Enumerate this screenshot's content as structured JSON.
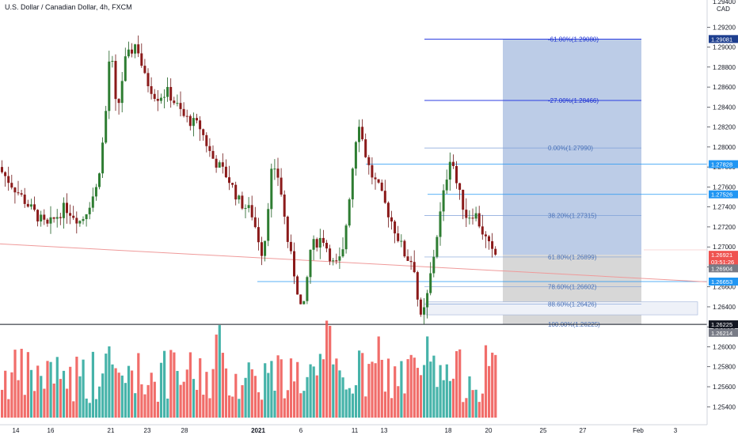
{
  "header": {
    "title": "U.S. Dollar / Canadian Dollar, 4h, FXCM"
  },
  "chart_data": {
    "type": "candlestick",
    "title": "U.S. Dollar / Canadian Dollar, 4h, FXCM",
    "price_axis": {
      "currency": "CAD",
      "ylim": [
        1.2522,
        1.2944
      ],
      "ticks": [
        "1.25400",
        "1.25600",
        "1.25800",
        "1.26000",
        "1.26200",
        "1.26400",
        "1.26600",
        "1.26800",
        "1.27000",
        "1.27200",
        "1.27400",
        "1.27600",
        "1.27800",
        "1.28000",
        "1.28200",
        "1.28400",
        "1.28600",
        "1.28800",
        "1.29000",
        "1.29200"
      ],
      "top_partial_tick": "1.29400"
    },
    "x_axis": {
      "labels": [
        "14",
        "16",
        "21",
        "23",
        "28",
        "2021",
        "6",
        "11",
        "13",
        "18",
        "20",
        "25",
        "27",
        "Feb",
        "3"
      ],
      "bold": [
        "2021"
      ]
    },
    "price_tags": [
      {
        "text": "1.29081",
        "price": 1.29081,
        "color": "#1e3f8f"
      },
      {
        "text": "1.27828",
        "price": 1.27828,
        "color": "#2196f3"
      },
      {
        "text": "1.27526",
        "price": 1.27526,
        "color": "#2196f3"
      },
      {
        "text": "1.26921",
        "price": 1.26921,
        "color": "#ef5350"
      },
      {
        "text": "03:51:26",
        "price": 1.26852,
        "color": "#ef5350"
      },
      {
        "text": "1.26904",
        "price": 1.26785,
        "color": "#787b86"
      },
      {
        "text": "1.26653",
        "price": 1.26653,
        "color": "#2196f3"
      },
      {
        "text": "1.26225",
        "price": 1.26225,
        "color": "#131722"
      },
      {
        "text": "1.26214",
        "price": 1.2614,
        "color": "#787b86"
      }
    ],
    "fib_levels": [
      {
        "label": "-61.80%(1.29080)",
        "price": 1.2908
      },
      {
        "label": "-27.00%(1.28466)",
        "price": 1.28466
      },
      {
        "label": "0.00%(1.27990)",
        "price": 1.2799
      },
      {
        "label": "38.20%(1.27315)",
        "price": 1.27315
      },
      {
        "label": "61.80%(1.26899)",
        "price": 1.26899
      },
      {
        "label": "78.60%(1.26602)",
        "price": 1.26602
      },
      {
        "label": "88.60%(1.26426)",
        "price": 1.26426
      },
      {
        "label": "100.00%(1.26225)",
        "price": 1.26225
      }
    ],
    "horizontal_lines": [
      {
        "price": 1.27828,
        "color": "#2196f3"
      },
      {
        "price": 1.27526,
        "color": "#2196f3"
      },
      {
        "price": 1.26653,
        "color": "#2196f3"
      },
      {
        "price": 1.26225,
        "color": "#131722"
      }
    ],
    "trendline": {
      "from": [
        0,
        1.2703
      ],
      "to": [
        1.0,
        1.2665
      ],
      "color": "#ef9a9a"
    },
    "position": {
      "entry": 1.26921,
      "target": 1.29081,
      "stop": 1.26225
    },
    "colors": {
      "up": "#26a69a",
      "down": "#ef5350",
      "up_body": "#2e7d32",
      "down_body": "#8b1a1a",
      "target_zone": "#b8c9e6",
      "stop_zone": "#d3d3d3",
      "fib_line": "#2962ff",
      "fib_text": "#4a72b8"
    }
  }
}
